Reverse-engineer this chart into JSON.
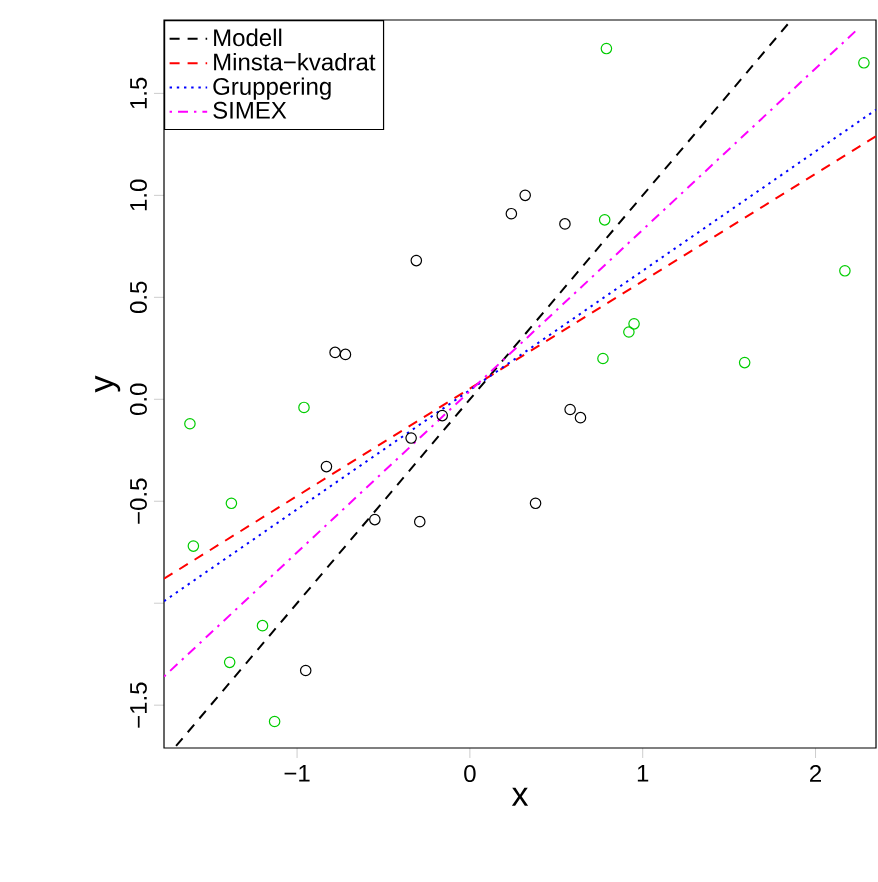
{
  "chart_data": {
    "type": "scatter",
    "xlabel": "x",
    "ylabel": "y",
    "xlim": [
      -1.77,
      2.35
    ],
    "ylim": [
      -1.71,
      1.86
    ],
    "xticks": [
      {
        "value": -1,
        "label": "−1"
      },
      0,
      1,
      2
    ],
    "yticks": [
      {
        "value": -1.5,
        "label": "−1.5"
      },
      {
        "value": -1,
        "label": null
      },
      {
        "value": -0.5,
        "label": "−0.5"
      },
      {
        "value": 0,
        "label": "0.0"
      },
      {
        "value": 0.5,
        "label": "0.5"
      },
      {
        "value": 1,
        "label": "1.0"
      },
      {
        "value": 1.5,
        "label": "1.5"
      }
    ],
    "grid": false,
    "legend": "top left",
    "marker": "circle",
    "series": [
      {
        "color": "#000000",
        "x": [
          -0.31,
          -0.78,
          -0.72,
          -0.83,
          -0.34,
          -0.16,
          -0.55,
          -0.29,
          -0.95,
          0.32,
          0.24,
          0.55,
          0.58,
          0.64,
          0.38
        ],
        "values": [
          0.68,
          0.23,
          0.22,
          -0.33,
          -0.19,
          -0.08,
          -0.59,
          -0.6,
          -1.33,
          1.0,
          0.91,
          0.86,
          -0.05,
          -0.09,
          -0.51
        ]
      },
      {
        "color": "#00cd00",
        "x": [
          -1.62,
          -0.96,
          -1.38,
          -1.6,
          -1.2,
          -1.39,
          -1.13,
          0.79,
          2.28,
          0.78,
          2.17,
          0.95,
          0.92,
          0.77,
          1.59
        ],
        "values": [
          -0.12,
          -0.04,
          -0.51,
          -0.72,
          -1.11,
          -1.29,
          -1.58,
          1.72,
          1.65,
          0.88,
          0.63,
          0.37,
          0.33,
          0.2,
          0.18
        ]
      },
      {
        "name": "Modell",
        "type": "line",
        "color": "#000000",
        "line_style": "dashed",
        "marker": "none",
        "x": [
          -1.7,
          1.85
        ],
        "values": [
          -1.7,
          1.85
        ]
      },
      {
        "name": "Minsta−kvadrat",
        "type": "line",
        "color": "#ff0000",
        "line_style": "dashed",
        "marker": "none",
        "x": [
          -1.77,
          2.35
        ],
        "values": [
          -0.88,
          1.29
        ]
      },
      {
        "name": "Gruppering",
        "type": "line",
        "color": "#0000ff",
        "line_style": "dotted",
        "marker": "none",
        "x": [
          -1.77,
          2.35
        ],
        "values": [
          -0.99,
          1.42
        ]
      },
      {
        "name": "SIMEX",
        "type": "line",
        "color": "#ff00ff",
        "line_style": "dashdot",
        "marker": "none",
        "x": [
          -1.77,
          2.25
        ],
        "values": [
          -1.36,
          1.82
        ]
      }
    ]
  }
}
